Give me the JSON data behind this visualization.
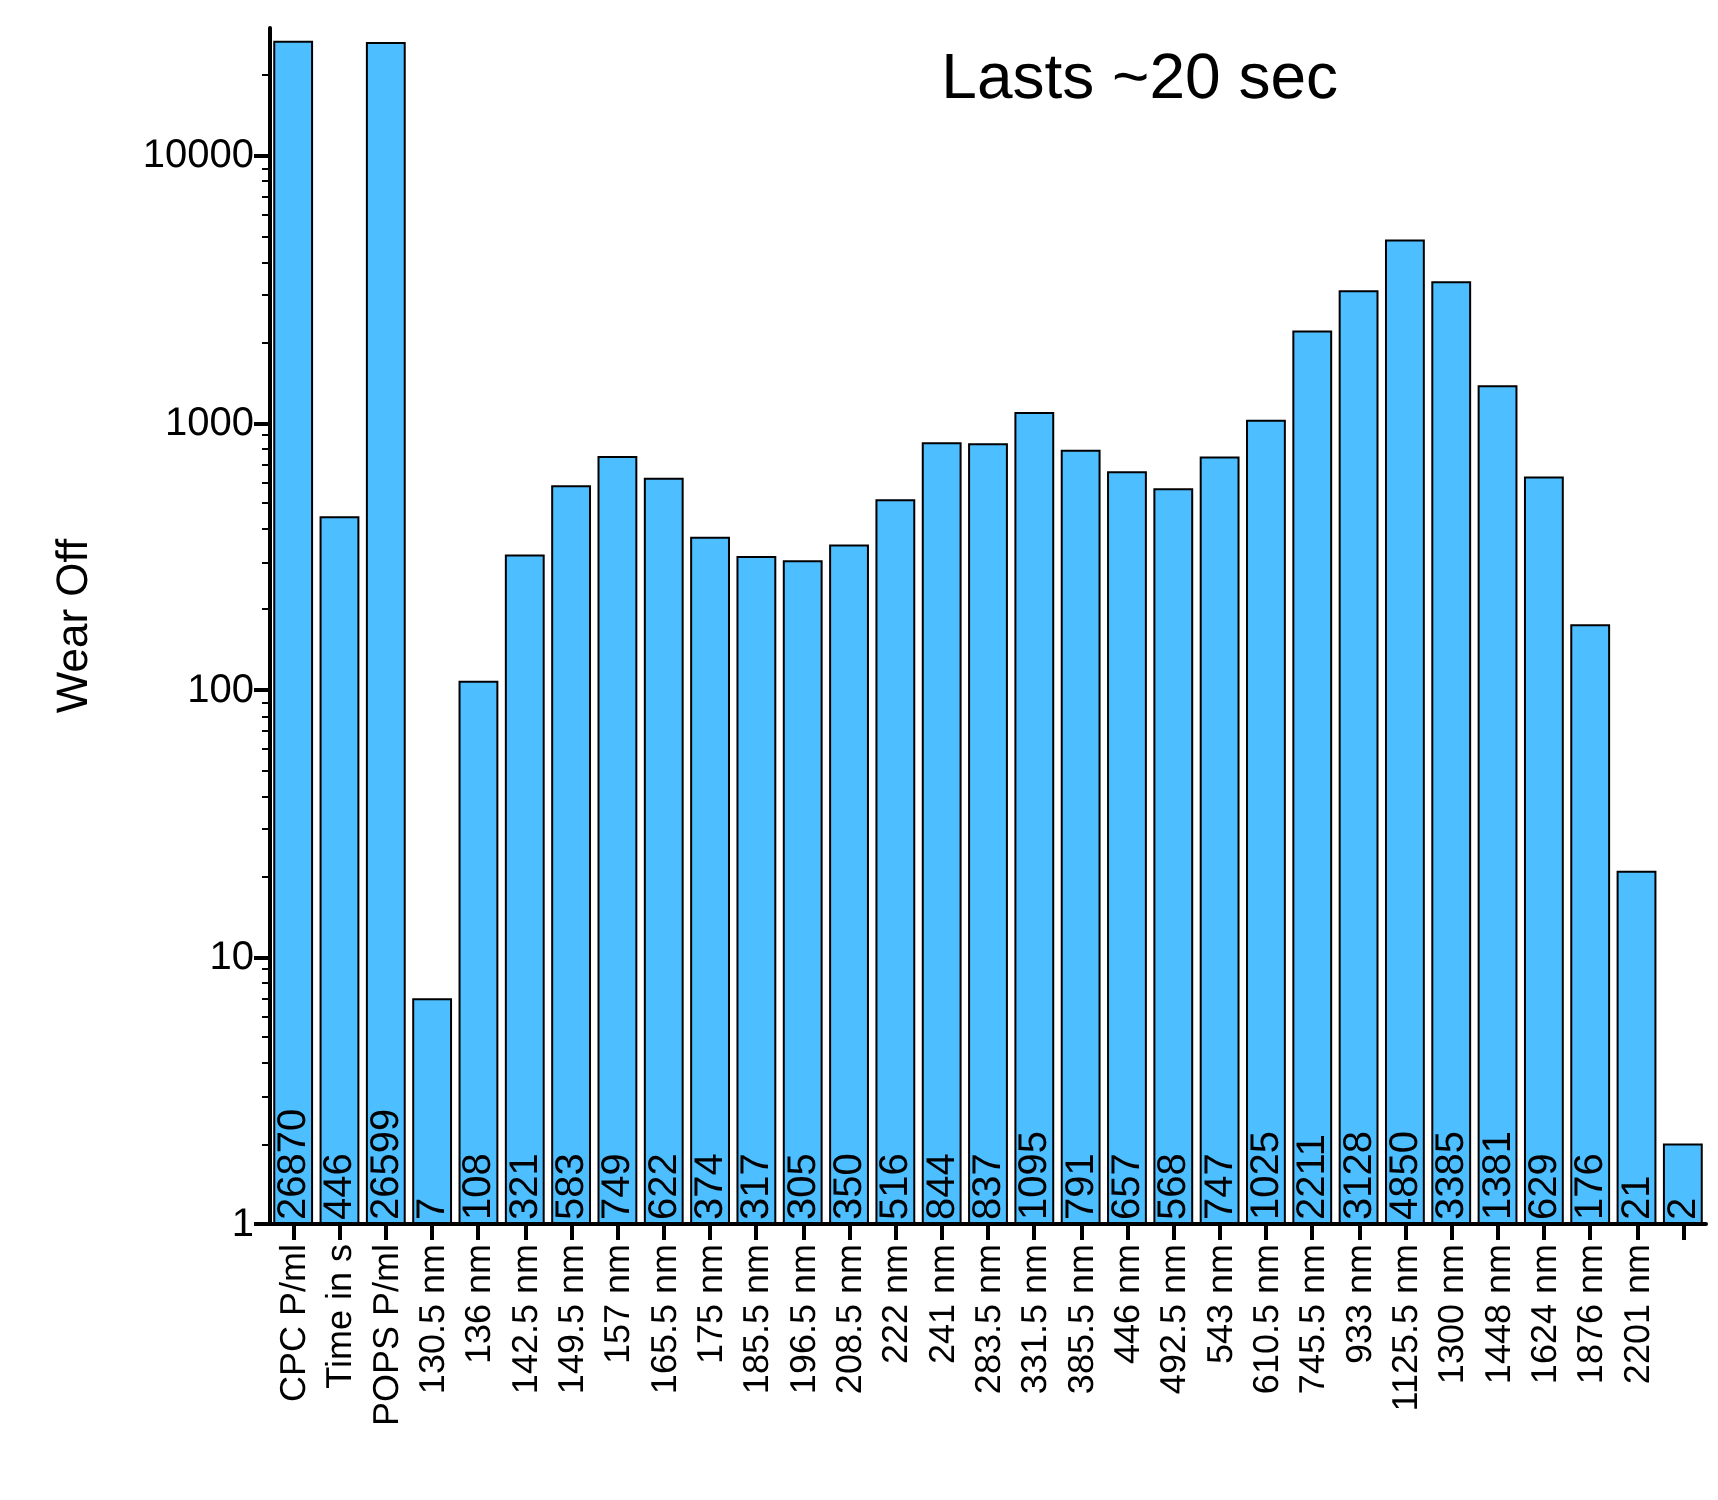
{
  "chart_data": {
    "type": "bar",
    "ylabel": "Wear Off",
    "annotations": [
      "Lasts ~20 sec"
    ],
    "categories": [
      "CPC P/ml",
      "Time in s",
      "POPS P/ml",
      "130.5 nm",
      "136 nm",
      "142.5 nm",
      "149.5 nm",
      "157 nm",
      "165.5 nm",
      "175 nm",
      "185.5 nm",
      "196.5 nm",
      "208.5 nm",
      "222 nm",
      "241 nm",
      "283.5 nm",
      "331.5 nm",
      "385.5 nm",
      "446 nm",
      "492.5 nm",
      "543 nm",
      "610.5 nm",
      "745.5 nm",
      "933 nm",
      "1125.5 nm",
      "1300 nm",
      "1448 nm",
      "1624 nm",
      "1876 nm",
      "2201 nm",
      null
    ],
    "values": [
      26870,
      446,
      26599,
      7,
      108,
      321,
      583,
      749,
      622,
      374,
      317,
      305,
      350,
      516,
      844,
      837,
      1095,
      791,
      657,
      568,
      747,
      1025,
      2211,
      3128,
      4850,
      3385,
      1381,
      629,
      176,
      21,
      2
    ],
    "color": "#4dbeff",
    "data_labels": true,
    "log": true,
    "ylim": [
      1,
      30000
    ],
    "yticks": [
      1,
      10,
      100,
      1000,
      10000
    ],
    "grid": false
  }
}
